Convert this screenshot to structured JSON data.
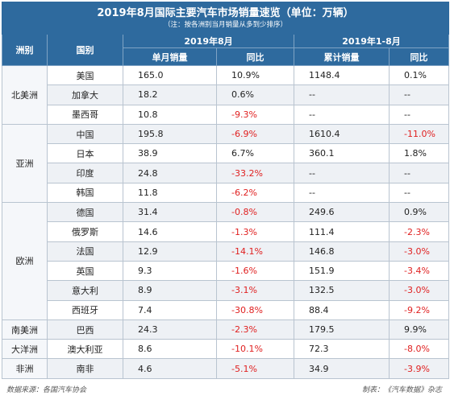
{
  "title": "2019年8月国际主要汽车市场销量速览（单位：万辆）",
  "subtitle": "（注：按各洲别当月销量从多到少排序）",
  "headers": {
    "region": "洲别",
    "country": "国别",
    "period1": "2019年8月",
    "period2": "2019年1-8月",
    "monthly_sales": "单月销量",
    "yoy1": "同比",
    "cumulative_sales": "累计销量",
    "yoy2": "同比"
  },
  "rows": [
    {
      "region": "北美洲",
      "country": "美国",
      "monthly": "165.0",
      "yoy_m": "10.9%",
      "cum": "1148.4",
      "yoy_c": "0.1%"
    },
    {
      "region": "",
      "country": "加拿大",
      "monthly": "18.2",
      "yoy_m": "0.6%",
      "cum": "--",
      "yoy_c": "--"
    },
    {
      "region": "",
      "country": "墨西哥",
      "monthly": "10.8",
      "yoy_m": "-9.3%",
      "cum": "--",
      "yoy_c": "--"
    },
    {
      "region": "亚洲",
      "country": "中国",
      "monthly": "195.8",
      "yoy_m": "-6.9%",
      "cum": "1610.4",
      "yoy_c": "-11.0%"
    },
    {
      "region": "",
      "country": "日本",
      "monthly": "38.9",
      "yoy_m": "6.7%",
      "cum": "360.1",
      "yoy_c": "1.8%"
    },
    {
      "region": "",
      "country": "印度",
      "monthly": "24.8",
      "yoy_m": "-33.2%",
      "cum": "--",
      "yoy_c": "--"
    },
    {
      "region": "",
      "country": "韩国",
      "monthly": "11.8",
      "yoy_m": "-6.2%",
      "cum": "--",
      "yoy_c": "--"
    },
    {
      "region": "欧洲",
      "country": "德国",
      "monthly": "31.4",
      "yoy_m": "-0.8%",
      "cum": "249.6",
      "yoy_c": "0.9%"
    },
    {
      "region": "",
      "country": "俄罗斯",
      "monthly": "14.6",
      "yoy_m": "-1.3%",
      "cum": "111.4",
      "yoy_c": "-2.3%"
    },
    {
      "region": "",
      "country": "法国",
      "monthly": "12.9",
      "yoy_m": "-14.1%",
      "cum": "146.8",
      "yoy_c": "-3.0%"
    },
    {
      "region": "",
      "country": "英国",
      "monthly": "9.3",
      "yoy_m": "-1.6%",
      "cum": "151.9",
      "yoy_c": "-3.4%"
    },
    {
      "region": "",
      "country": "意大利",
      "monthly": "8.9",
      "yoy_m": "-3.1%",
      "cum": "132.5",
      "yoy_c": "-3.0%"
    },
    {
      "region": "",
      "country": "西班牙",
      "monthly": "7.4",
      "yoy_m": "-30.8%",
      "cum": "88.4",
      "yoy_c": "-9.2%"
    },
    {
      "region": "南美洲",
      "country": "巴西",
      "monthly": "24.3",
      "yoy_m": "-2.3%",
      "cum": "179.5",
      "yoy_c": "9.9%"
    },
    {
      "region": "大洋洲",
      "country": "澳大利亚",
      "monthly": "8.6",
      "yoy_m": "-10.1%",
      "cum": "72.3",
      "yoy_c": "-8.0%"
    },
    {
      "region": "非洲",
      "country": "南非",
      "monthly": "4.6",
      "yoy_m": "-5.1%",
      "cum": "34.9",
      "yoy_c": "-3.9%"
    }
  ],
  "region_spans": [
    3,
    0,
    0,
    4,
    0,
    0,
    0,
    6,
    0,
    0,
    0,
    0,
    0,
    1,
    1,
    1
  ],
  "footer": {
    "source": "数据来源：各国汽车协会",
    "maker": "制表：《汽车数据》杂志"
  },
  "colors": {
    "header_bg": "#2e6a9e",
    "negative": "#e02020",
    "alt_row": "#eef1f5"
  }
}
